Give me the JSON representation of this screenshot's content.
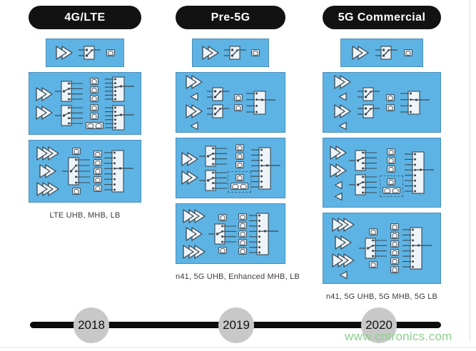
{
  "colors": {
    "box_blue": "#5db3e4",
    "box_border": "#4b8fba",
    "pill_black": "#121212",
    "icon_fill": "#eef4f8",
    "icon_stroke": "#3a4852",
    "timeline_black": "#0c0c0c",
    "year_circle_gray": "#c8c8c8",
    "caption_gray": "#3b3b3b",
    "watermark_green": "#8ecf8e"
  },
  "columns": [
    {
      "id": "4g-lte",
      "header": "4G/LTE",
      "caption": "LTE UHB, MHB, LB",
      "boxes": [
        {
          "name": "pa-module",
          "small": true,
          "groups": [
            [
              "pa-2stage"
            ],
            [
              "switch-sp2t"
            ],
            [
              "filter"
            ]
          ]
        },
        {
          "name": "mid-high-band-module",
          "groups": [
            [
              "pa-2stage",
              "pa-2stage"
            ],
            [
              "switch-sp4t",
              "switch-sp4t"
            ],
            [
              "filter-stack-3",
              "filter-stack-2",
              "duplexer-pair"
            ],
            [
              "antenna-switch-6",
              "antenna-switch-6"
            ]
          ]
        },
        {
          "name": "multi-band-module",
          "groups": [
            [
              "pa-3stage",
              "pa-2stage",
              "pa-3stage"
            ],
            [
              "filter",
              "switch-sp5t",
              "filter"
            ],
            [
              "filter-stack-5"
            ],
            [
              "antenna-switch-8"
            ]
          ]
        }
      ]
    },
    {
      "id": "pre-5g",
      "header": "Pre-5G",
      "caption": "n41, 5G UHB, Enhanced MHB, LB",
      "boxes": [
        {
          "name": "pa-module",
          "small": true,
          "groups": [
            [
              "pa-2stage"
            ],
            [
              "switch-sp2t"
            ],
            [
              "filter"
            ]
          ]
        },
        {
          "name": "tx-rx-module",
          "groups": [
            [
              "pa-2stage",
              "lna",
              "pa-2stage",
              "lna"
            ],
            [
              "switch-sp2t",
              "switch-sp2t"
            ],
            [
              "filter",
              "filter"
            ],
            [
              "antenna-switch-4"
            ]
          ]
        },
        {
          "name": "enhanced-band-module",
          "groups": [
            [
              "pa-2stage",
              "pa-2stage"
            ],
            [
              "switch-sp4t",
              "switch-sp4t"
            ],
            [
              "filter-stack-3",
              {
                "dashed": [
                  "filter",
                  "duplexer-pair"
                ]
              }
            ],
            [
              "antenna-switch-8"
            ]
          ]
        },
        {
          "name": "multi-band-module",
          "groups": [
            [
              "pa-3stage",
              "pa-2stage",
              "pa-3stage"
            ],
            [
              "filter",
              "switch-sp4t",
              "filter"
            ],
            [
              "filter-stack-5"
            ],
            [
              "antenna-switch-8"
            ]
          ]
        }
      ]
    },
    {
      "id": "5g-commercial",
      "header": "5G Commercial",
      "caption": "n41, 5G UHB, 5G MHB, 5G LB",
      "boxes": [
        {
          "name": "pa-module",
          "small": true,
          "groups": [
            [
              "pa-2stage"
            ],
            [
              "switch-sp2t"
            ],
            [
              "filter"
            ]
          ]
        },
        {
          "name": "tx-rx-module",
          "groups": [
            [
              "pa-2stage",
              "lna",
              "pa-2stage",
              "lna"
            ],
            [
              "switch-sp2t",
              "switch-sp2t"
            ],
            [
              "filter",
              "filter"
            ],
            [
              "antenna-switch-4"
            ]
          ]
        },
        {
          "name": "enhanced-band-module",
          "groups": [
            [
              "pa-2stage",
              "pa-2stage",
              "lna",
              "lna"
            ],
            [
              "switch-sp4t",
              "switch-sp4t"
            ],
            [
              "filter-stack-3",
              {
                "dashed": [
                  "filter",
                  "duplexer-pair"
                ]
              }
            ],
            [
              "antenna-switch-8"
            ]
          ]
        },
        {
          "name": "multi-band-module",
          "groups": [
            [
              "pa-3stage",
              "pa-2stage",
              "pa-3stage",
              "lna"
            ],
            [
              "filter",
              "switch-sp4t",
              "filter"
            ],
            [
              "filter-stack-6"
            ],
            [
              "antenna-switch-8"
            ]
          ]
        }
      ]
    }
  ],
  "timeline": {
    "years": [
      "2018",
      "2019",
      "2020"
    ]
  },
  "watermark": "www.cntronics.com"
}
